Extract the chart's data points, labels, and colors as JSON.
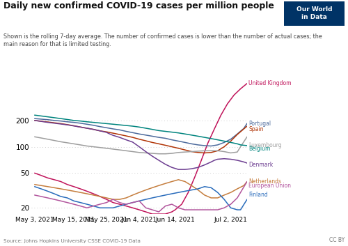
{
  "title": "Daily new confirmed COVID-19 cases per million people",
  "subtitle": "Shown is the rolling 7-day average. The number of confirmed cases is lower than the number of actual cases; the\nmain reason for that is limited testing.",
  "source": "Source: Johns Hopkins University CSSE COVID-19 Data",
  "credit": "CC BY",
  "x_tick_labels": [
    "May 3, 2021",
    "May 15, 2021",
    "May 25, 2021",
    "Jun 4, 2021",
    "Jun 14, 2021",
    "Jul 2, 2021"
  ],
  "x_tick_pos": [
    0,
    12,
    22,
    32,
    43,
    60
  ],
  "y_ticks": [
    20,
    50,
    100,
    200
  ],
  "xlim": [
    -1,
    66
  ],
  "ylim_log": [
    17,
    600
  ],
  "owid_bg": "#003366",
  "owid_text": "Our World\nin Data",
  "series": {
    "United Kingdom": {
      "color": "#c0135a",
      "x": [
        0,
        2,
        4,
        6,
        8,
        10,
        12,
        14,
        16,
        18,
        20,
        22,
        24,
        26,
        28,
        30,
        32,
        34,
        36,
        38,
        40,
        42,
        43,
        45,
        47,
        49,
        51,
        53,
        55,
        57,
        59,
        61,
        63,
        65
      ],
      "y": [
        50,
        47,
        44,
        42,
        40,
        37,
        35,
        33,
        31,
        29,
        27,
        25,
        23,
        22,
        21,
        20,
        19,
        18,
        17,
        17,
        17,
        18,
        19,
        22,
        30,
        45,
        70,
        110,
        160,
        230,
        310,
        390,
        460,
        530
      ]
    },
    "Portugal": {
      "color": "#4c6a9c",
      "x": [
        0,
        2,
        4,
        6,
        8,
        10,
        12,
        14,
        16,
        18,
        20,
        22,
        24,
        26,
        28,
        30,
        32,
        34,
        36,
        38,
        40,
        42,
        44,
        46,
        48,
        50,
        52,
        54,
        56,
        58,
        60,
        62,
        64,
        65
      ],
      "y": [
        210,
        207,
        204,
        200,
        197,
        193,
        190,
        186,
        181,
        176,
        170,
        165,
        160,
        156,
        150,
        145,
        140,
        136,
        132,
        128,
        125,
        120,
        116,
        112,
        108,
        105,
        103,
        102,
        105,
        112,
        122,
        140,
        162,
        185
      ]
    },
    "Spain": {
      "color": "#b13507",
      "x": [
        0,
        2,
        4,
        6,
        8,
        10,
        12,
        14,
        16,
        18,
        20,
        22,
        24,
        26,
        28,
        30,
        32,
        34,
        36,
        38,
        40,
        42,
        44,
        46,
        48,
        50,
        52,
        54,
        56,
        58,
        60,
        62,
        64,
        65
      ],
      "y": [
        200,
        196,
        192,
        188,
        184,
        179,
        174,
        168,
        163,
        158,
        152,
        148,
        143,
        138,
        133,
        128,
        122,
        117,
        112,
        108,
        104,
        100,
        96,
        92,
        88,
        86,
        85,
        86,
        90,
        100,
        116,
        138,
        160,
        172
      ]
    },
    "Luxembourg": {
      "color": "#9e9e9e",
      "x": [
        0,
        2,
        4,
        6,
        8,
        10,
        12,
        14,
        16,
        18,
        20,
        22,
        24,
        26,
        28,
        30,
        32,
        34,
        36,
        38,
        40,
        42,
        43,
        44,
        46,
        48,
        50,
        52,
        54,
        55,
        56,
        58,
        60,
        62,
        63,
        65
      ],
      "y": [
        130,
        126,
        122,
        118,
        114,
        111,
        108,
        105,
        102,
        100,
        98,
        96,
        94,
        92,
        90,
        88,
        86,
        85,
        84,
        83,
        83,
        84,
        85,
        86,
        87,
        88,
        89,
        90,
        90,
        90,
        90,
        88,
        85,
        87,
        100,
        130
      ]
    },
    "Belgium": {
      "color": "#00847e",
      "x": [
        0,
        2,
        4,
        6,
        8,
        10,
        12,
        14,
        16,
        18,
        20,
        22,
        24,
        26,
        28,
        30,
        32,
        34,
        36,
        38,
        40,
        42,
        44,
        46,
        48,
        50,
        52,
        54,
        56,
        58,
        60,
        62,
        63,
        65
      ],
      "y": [
        230,
        225,
        220,
        215,
        210,
        205,
        200,
        197,
        193,
        190,
        187,
        184,
        181,
        178,
        175,
        172,
        168,
        163,
        158,
        153,
        150,
        147,
        144,
        140,
        136,
        132,
        128,
        124,
        120,
        116,
        112,
        108,
        105,
        103
      ]
    },
    "Denmark": {
      "color": "#6d3e91",
      "x": [
        0,
        2,
        4,
        6,
        8,
        10,
        12,
        14,
        16,
        18,
        20,
        22,
        23,
        24,
        26,
        28,
        30,
        32,
        34,
        36,
        38,
        40,
        42,
        44,
        46,
        48,
        50,
        52,
        54,
        55,
        56,
        58,
        60,
        62,
        64,
        65
      ],
      "y": [
        200,
        195,
        190,
        186,
        182,
        178,
        173,
        168,
        163,
        158,
        152,
        146,
        140,
        135,
        128,
        120,
        113,
        100,
        88,
        78,
        70,
        63,
        58,
        55,
        55,
        56,
        58,
        62,
        67,
        70,
        72,
        73,
        72,
        70,
        67,
        65
      ]
    },
    "Netherlands": {
      "color": "#c57d3d",
      "x": [
        0,
        2,
        4,
        6,
        8,
        10,
        12,
        14,
        16,
        18,
        20,
        22,
        24,
        26,
        28,
        30,
        32,
        34,
        36,
        38,
        40,
        42,
        44,
        46,
        48,
        50,
        52,
        54,
        56,
        58,
        60,
        62,
        64,
        65
      ],
      "y": [
        37,
        36,
        35,
        34,
        33,
        32,
        31,
        30,
        29,
        28,
        27,
        26,
        25,
        25,
        26,
        28,
        30,
        32,
        34,
        36,
        38,
        40,
        42,
        40,
        36,
        32,
        28,
        26,
        26,
        28,
        30,
        33,
        36,
        40
      ]
    },
    "Finland": {
      "color": "#286bbb",
      "x": [
        0,
        2,
        4,
        6,
        8,
        10,
        12,
        14,
        16,
        18,
        20,
        22,
        24,
        26,
        28,
        30,
        32,
        34,
        36,
        38,
        40,
        42,
        44,
        46,
        48,
        50,
        52,
        54,
        56,
        58,
        60,
        62,
        63,
        65
      ],
      "y": [
        35,
        33,
        31,
        29,
        27,
        26,
        24,
        23,
        22,
        21,
        20,
        20,
        20,
        21,
        22,
        23,
        24,
        25,
        26,
        27,
        28,
        29,
        30,
        31,
        32,
        33,
        35,
        34,
        30,
        25,
        20,
        19,
        19,
        25
      ]
    },
    "European Union": {
      "color": "#b2559d",
      "x": [
        0,
        2,
        4,
        6,
        8,
        10,
        12,
        14,
        16,
        18,
        20,
        22,
        24,
        26,
        28,
        30,
        32,
        34,
        36,
        38,
        40,
        42,
        43,
        44,
        46,
        47,
        48,
        50,
        52,
        54,
        55,
        56,
        58,
        60,
        62,
        63,
        65
      ],
      "y": [
        28,
        27,
        26,
        25,
        24,
        23,
        22,
        21,
        20,
        21,
        22,
        23,
        25,
        23,
        22,
        23,
        24,
        20,
        19,
        18,
        21,
        22,
        21,
        20,
        19,
        19,
        19,
        19,
        19,
        19,
        19,
        19,
        20,
        22,
        26,
        30,
        40
      ]
    }
  },
  "series_order": [
    "United Kingdom",
    "Portugal",
    "Spain",
    "Luxembourg",
    "Belgium",
    "Denmark",
    "Netherlands",
    "Finland",
    "European Union"
  ],
  "label_pos": {
    "United Kingdom": [
      65.2,
      530,
      "center"
    ],
    "Portugal": [
      65.2,
      185,
      "center"
    ],
    "Spain": [
      65.2,
      160,
      "center"
    ],
    "Luxembourg": [
      65.2,
      108,
      "center"
    ],
    "Belgium": [
      65.2,
      95,
      "center"
    ],
    "Denmark": [
      65.2,
      62,
      "center"
    ],
    "Netherlands": [
      65.2,
      40,
      "center"
    ],
    "Finland": [
      65.2,
      27,
      "center"
    ],
    "European Union": [
      65.2,
      38,
      "center"
    ]
  }
}
